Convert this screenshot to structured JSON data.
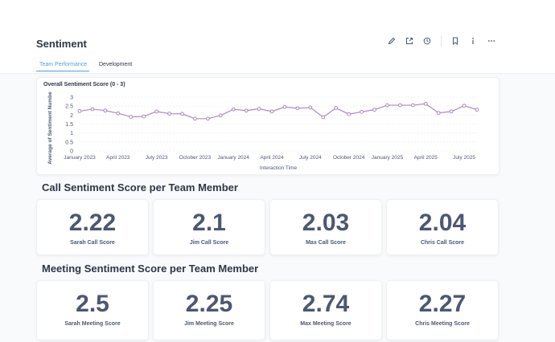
{
  "page": {
    "title": "Sentiment"
  },
  "toolbar": {
    "icons": [
      "pencil-icon",
      "share-icon",
      "clock-icon",
      "bookmark-icon",
      "info-icon",
      "more-icon"
    ]
  },
  "tabs": [
    {
      "label": "Team Performance",
      "active": true
    },
    {
      "label": "Development",
      "active": false
    }
  ],
  "colors": {
    "accent": "#509ee3",
    "line": "#a989c5",
    "text": "#4c5773"
  },
  "chart_data": {
    "type": "line",
    "title": "Overall Sentiment Score (0 - 3)",
    "xlabel": "Interaction Time",
    "ylabel": "Average of Sentiment Numbe",
    "ylim": [
      0,
      3
    ],
    "yticks": [
      "0",
      "0.5",
      "1",
      "1.5",
      "2",
      "2.5",
      "3"
    ],
    "xtick_labels": [
      "January 2023",
      "April 2023",
      "July 2023",
      "October 2023",
      "January 2024",
      "April 2024",
      "July 2024",
      "October 2024",
      "January 2025",
      "April 2025",
      "July 2025"
    ],
    "xtick_index": [
      0,
      3,
      6,
      9,
      12,
      15,
      18,
      21,
      24,
      27,
      30
    ],
    "x": [
      "2023-01",
      "2023-02",
      "2023-03",
      "2023-04",
      "2023-05",
      "2023-06",
      "2023-07",
      "2023-08",
      "2023-09",
      "2023-10",
      "2023-11",
      "2023-12",
      "2024-01",
      "2024-02",
      "2024-03",
      "2024-04",
      "2024-05",
      "2024-06",
      "2024-07",
      "2024-08",
      "2024-09",
      "2024-10",
      "2024-11",
      "2024-12",
      "2025-01",
      "2025-02",
      "2025-03",
      "2025-04",
      "2025-05",
      "2025-06",
      "2025-07",
      "2025-08"
    ],
    "series": [
      {
        "name": "Average of Sentiment Number",
        "values": [
          2.22,
          2.33,
          2.25,
          2.1,
          1.9,
          1.92,
          2.2,
          2.08,
          2.07,
          1.8,
          1.8,
          1.98,
          2.32,
          2.25,
          2.35,
          2.2,
          2.45,
          2.38,
          2.42,
          1.88,
          2.4,
          2.05,
          2.18,
          2.3,
          2.55,
          2.55,
          2.55,
          2.63,
          2.12,
          2.2,
          2.52,
          2.3
        ]
      }
    ]
  },
  "call_section": {
    "title": "Call Sentiment Score per Team Member",
    "cards": [
      {
        "value": "2.22",
        "label": "Sarah Call Score"
      },
      {
        "value": "2.1",
        "label": "Jim Call Score"
      },
      {
        "value": "2.03",
        "label": "Max Call Score"
      },
      {
        "value": "2.04",
        "label": "Chris Call Score"
      }
    ]
  },
  "meeting_section": {
    "title": "Meeting Sentiment Score per Team Member",
    "cards": [
      {
        "value": "2.5",
        "label": "Sarah Meeting Score"
      },
      {
        "value": "2.25",
        "label": "Jim Meeting Score"
      },
      {
        "value": "2.74",
        "label": "Max Meeting Score"
      },
      {
        "value": "2.27",
        "label": "Chris Meeting Score"
      }
    ]
  }
}
